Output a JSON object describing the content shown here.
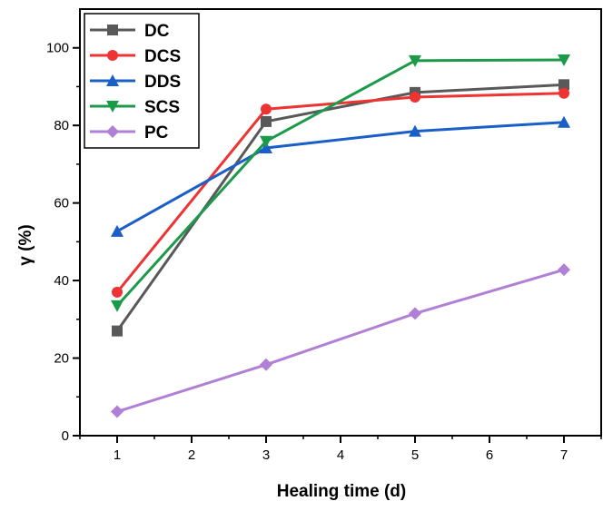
{
  "chart_data": {
    "type": "line",
    "xlabel": "Healing time (d)",
    "ylabel": "γ (%)",
    "xlim": [
      0.5,
      7.5
    ],
    "ylim": [
      0,
      110
    ],
    "x_ticks": [
      1,
      2,
      3,
      4,
      5,
      6,
      7
    ],
    "y_ticks": [
      0,
      20,
      40,
      60,
      80,
      100
    ],
    "grid": false,
    "legend_position": "top-left",
    "x": [
      1,
      3,
      5,
      7
    ],
    "series": [
      {
        "name": "DC",
        "values": [
          27.0,
          81.0,
          88.5,
          90.5
        ],
        "color": "#595959",
        "marker": "square"
      },
      {
        "name": "DCS",
        "values": [
          37.0,
          84.2,
          87.3,
          88.3
        ],
        "color": "#ee3333",
        "marker": "circle"
      },
      {
        "name": "DDS",
        "values": [
          52.7,
          74.2,
          78.5,
          80.8
        ],
        "color": "#1a5fc8",
        "marker": "triangle-up"
      },
      {
        "name": "SCS",
        "values": [
          33.5,
          75.9,
          96.7,
          96.9
        ],
        "color": "#1b9a4a",
        "marker": "triangle-down"
      },
      {
        "name": "PC",
        "values": [
          6.2,
          18.3,
          31.5,
          42.8
        ],
        "color": "#b07fd6",
        "marker": "diamond"
      }
    ]
  }
}
